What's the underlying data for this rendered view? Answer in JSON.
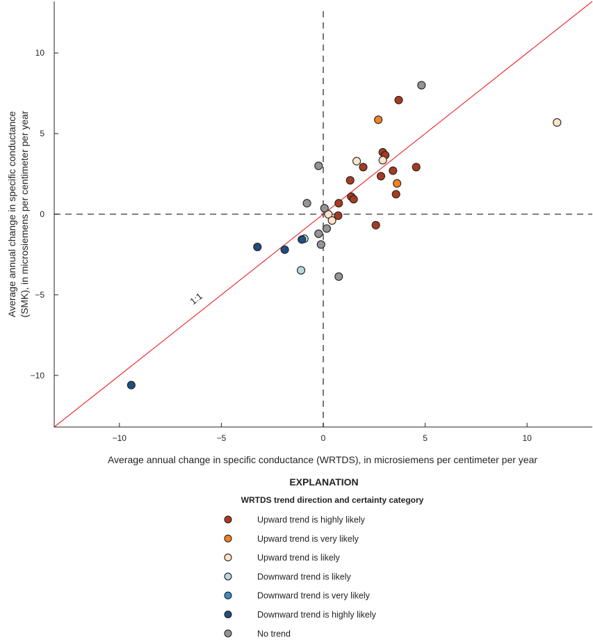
{
  "chart_data": {
    "type": "scatter",
    "xlabel": "Average annual change in specific conductance (WRTDS), in microsiemens per centimeter per year",
    "ylabel_lines": [
      "Average annual change in specific conductance",
      "(SMK), in microsiemens per centimeter per year"
    ],
    "xlim": [
      -13.2,
      13.2
    ],
    "ylim": [
      -13.2,
      13.2
    ],
    "xticks": [
      -10,
      -5,
      0,
      5,
      10
    ],
    "yticks": [
      -10,
      -5,
      0,
      5,
      10
    ],
    "xtick_labels": [
      "−10",
      "−5",
      "0",
      "5",
      "10"
    ],
    "ytick_labels": [
      "−10",
      "−5",
      "0",
      "5",
      "10"
    ],
    "grid": false,
    "reference_lines": {
      "zero_lines": "dashed",
      "one_to_one": {
        "label": "1:1",
        "color": "#ed1c24"
      }
    },
    "legend": {
      "title": "EXPLANATION",
      "subtitle": "WRTDS trend direction and certainty category",
      "placement": "bottom"
    },
    "series": [
      {
        "name": "Upward trend is highly likely",
        "color": "#a63b22",
        "points": [
          [
            3.7,
            7.08
          ],
          [
            2.92,
            3.84
          ],
          [
            3.04,
            3.66
          ],
          [
            1.96,
            2.92
          ],
          [
            3.42,
            2.7
          ],
          [
            4.56,
            2.92
          ],
          [
            2.83,
            2.36
          ],
          [
            1.32,
            2.1
          ],
          [
            3.57,
            1.24
          ],
          [
            1.37,
            1.09
          ],
          [
            1.49,
            0.93
          ],
          [
            0.76,
            0.68
          ],
          [
            0.73,
            -0.09
          ],
          [
            2.58,
            -0.68
          ]
        ]
      },
      {
        "name": "Upward trend is very likely",
        "color": "#f58220",
        "points": [
          [
            2.7,
            5.86
          ],
          [
            3.62,
            1.91
          ]
        ]
      },
      {
        "name": "Upward trend is likely",
        "color": "#fde5c9",
        "points": [
          [
            11.47,
            5.69
          ],
          [
            1.64,
            3.29
          ],
          [
            2.92,
            3.35
          ],
          [
            0.25,
            -0.01
          ],
          [
            0.43,
            -0.39
          ]
        ]
      },
      {
        "name": "Downward trend is likely",
        "color": "#b5d9de",
        "points": [
          [
            -0.93,
            -1.52
          ],
          [
            -1.09,
            -3.48
          ]
        ]
      },
      {
        "name": "Downward trend is very likely",
        "color": "#3b8cc6",
        "points": []
      },
      {
        "name": "Downward trend is highly likely",
        "color": "#1f4e7e",
        "points": [
          [
            -1.05,
            -1.57
          ],
          [
            -3.23,
            -2.03
          ],
          [
            -1.89,
            -2.2
          ],
          [
            -9.42,
            -10.6
          ]
        ]
      },
      {
        "name": "No trend",
        "color": "#939598",
        "points": [
          [
            4.82,
            8.0
          ],
          [
            -0.23,
            3.0
          ],
          [
            -0.8,
            0.68
          ],
          [
            0.06,
            0.37
          ],
          [
            0.17,
            -0.89
          ],
          [
            -0.23,
            -1.21
          ],
          [
            -0.11,
            -1.88
          ],
          [
            0.76,
            -3.87
          ]
        ]
      }
    ]
  }
}
